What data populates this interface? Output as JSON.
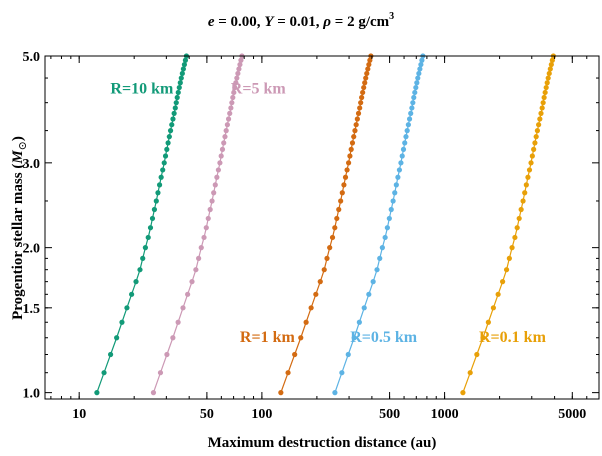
{
  "chart_data": {
    "type": "scatter",
    "title": {
      "e_label": "e",
      "e_value": " = 0.00, ",
      "Y_label": "Y",
      "Y_value": " = 0.01, ",
      "rho_label": "ρ",
      "rho_value": " = 2 g/cm",
      "rho_exp": "3"
    },
    "xlabel": "Maximum destruction distance (au)",
    "ylabel_main": "Progentior stellar mass (",
    "ylabel_symbol": "M",
    "ylabel_sub": "⊙",
    "ylabel_end": ")",
    "x_scale": "log",
    "y_scale": "log",
    "xlim": [
      6.5,
      7000
    ],
    "ylim": [
      0.97,
      5.0
    ],
    "x_ticks": [
      {
        "value": 10,
        "label": "10"
      },
      {
        "value": 50,
        "label": "50"
      },
      {
        "value": 100,
        "label": "100"
      },
      {
        "value": 500,
        "label": "500"
      },
      {
        "value": 1000,
        "label": "1000"
      },
      {
        "value": 5000,
        "label": "5000"
      }
    ],
    "y_ticks": [
      {
        "value": 1.0,
        "label": "1.0"
      },
      {
        "value": 1.5,
        "label": "1.5"
      },
      {
        "value": 2.0,
        "label": "2.0"
      },
      {
        "value": 3.0,
        "label": "3.0"
      },
      {
        "value": 5.0,
        "label": "5.0"
      }
    ],
    "grid": false,
    "series": [
      {
        "name": "R=10 km",
        "color": "#129a78",
        "x_at_1": 12.5,
        "x_at_5": 40
      },
      {
        "name": "R=5 km",
        "color": "#cc99b5",
        "x_at_1": 25.5,
        "x_at_5": 80
      },
      {
        "name": "R=1 km",
        "color": "#d36b12",
        "x_at_1": 127,
        "x_at_5": 410
      },
      {
        "name": "R=0.5 km",
        "color": "#5db3e4",
        "x_at_1": 251,
        "x_at_5": 780
      },
      {
        "name": "R=0.1 km",
        "color": "#e8a008",
        "x_at_1": 1260,
        "x_at_5": 4100
      }
    ],
    "curve_mass_values": [
      1.0,
      1.1,
      1.2,
      1.3,
      1.4,
      1.5,
      1.6,
      1.7,
      1.8,
      1.9,
      2.0,
      2.1,
      2.2,
      2.3,
      2.4,
      2.5,
      2.6,
      2.7,
      2.8,
      2.9,
      3.0,
      3.1,
      3.2,
      3.3,
      3.4,
      3.5,
      3.6,
      3.7,
      3.8,
      3.9,
      4.0,
      4.1,
      4.2,
      4.3,
      4.4,
      4.5,
      4.6,
      4.7,
      4.8,
      4.9,
      5.0
    ],
    "curve_x_ratio": [
      1.0,
      1.085,
      1.17,
      1.255,
      1.335,
      1.415,
      1.495,
      1.575,
      1.65,
      1.705,
      1.76,
      1.82,
      1.87,
      1.915,
      1.96,
      2.005,
      2.045,
      2.085,
      2.125,
      2.165,
      2.205,
      2.24,
      2.275,
      2.31,
      2.345,
      2.38,
      2.415,
      2.45,
      2.485,
      2.52,
      2.55,
      2.58,
      2.612,
      2.645,
      2.678,
      2.71,
      2.745,
      2.78,
      2.815,
      2.85,
      2.885
    ]
  }
}
